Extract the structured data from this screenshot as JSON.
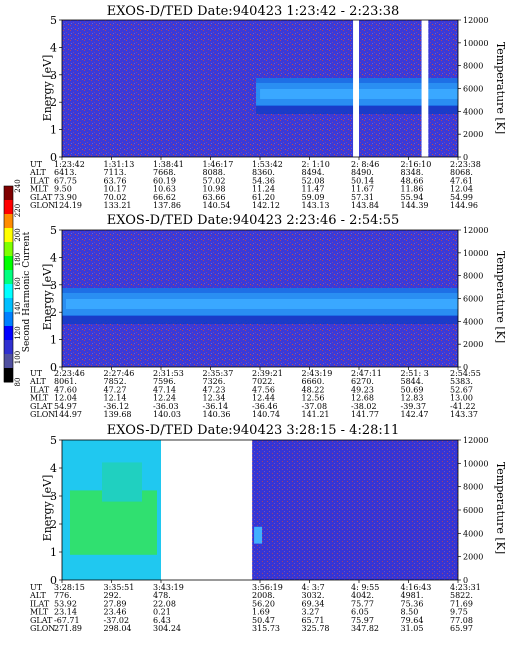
{
  "colorbar": {
    "label": "Second Harmonic Current",
    "ticks": [
      "240",
      "220",
      "200",
      "180",
      "160",
      "140",
      "120",
      "100",
      "80"
    ],
    "colors": [
      "#7f0000",
      "#ff0000",
      "#ff8c00",
      "#ffff00",
      "#7fff00",
      "#00ff00",
      "#00ff7f",
      "#00ffff",
      "#00bfff",
      "#0080ff",
      "#0000ff",
      "#3030d0",
      "#5050a0",
      "#000000"
    ]
  },
  "chart_data": [
    {
      "type": "heatmap",
      "title": "EXOS-D/TED    Date:940423    1:23:42 - 2:23:38",
      "ylabel": "Energy [eV]",
      "y2label": "Temperature [K]",
      "ylim": [
        0,
        5
      ],
      "y2lim": [
        0,
        12000
      ],
      "yticks": [
        "0",
        "1",
        "2",
        "3",
        "4",
        "5"
      ],
      "y2ticks": [
        "0",
        "2000",
        "4000",
        "6000",
        "8000",
        "10000",
        "12000"
      ],
      "grid": false,
      "data_gaps": [
        [
          0.735,
          0.75
        ],
        [
          0.908,
          0.925
        ]
      ],
      "band": {
        "start": 0.49,
        "center_y": 2.3
      },
      "axis_rows": [
        {
          "name": "UT",
          "values": [
            "1:23:42",
            "1:31:13",
            "1:38:41",
            "1:46:17",
            "1:53:42",
            "2: 1:10",
            "2: 8:46",
            "2:16:10",
            "2:23:38"
          ]
        },
        {
          "name": "ALT",
          "values": [
            "6413.",
            "7113.",
            "7668.",
            "8088.",
            "8360.",
            "8494.",
            "8490.",
            "8348.",
            "8068."
          ]
        },
        {
          "name": "ILAT",
          "values": [
            "67.75",
            "63.76",
            "60.19",
            "57.02",
            "54.36",
            "52.08",
            "50.14",
            "48.66",
            "47.61"
          ]
        },
        {
          "name": "MLT",
          "values": [
            "9.50",
            "10.17",
            "10.63",
            "10.98",
            "11.24",
            "11.47",
            "11.67",
            "11.86",
            "12.04"
          ]
        },
        {
          "name": "GLAT",
          "values": [
            "73.90",
            "70.02",
            "66.62",
            "63.66",
            "61.20",
            "59.09",
            "57.31",
            "55.94",
            "54.99"
          ]
        },
        {
          "name": "GLON",
          "values": [
            "124.19",
            "133.21",
            "137.86",
            "140.54",
            "142.12",
            "143.13",
            "143.84",
            "144.39",
            "144.96"
          ]
        }
      ]
    },
    {
      "type": "heatmap",
      "title": "EXOS-D/TED    Date:940423    2:23:46 - 2:54:55",
      "ylabel": "Energy [eV]",
      "y2label": "Temperature [K]",
      "ylim": [
        0,
        5
      ],
      "y2lim": [
        0,
        12000
      ],
      "yticks": [
        "0",
        "1",
        "2",
        "3",
        "4",
        "5"
      ],
      "y2ticks": [
        "0",
        "2000",
        "4000",
        "6000",
        "8000",
        "10000",
        "12000"
      ],
      "grid": false,
      "data_gaps": [],
      "band": {
        "start": 0.0,
        "center_y": 2.3
      },
      "axis_rows": [
        {
          "name": "UT",
          "values": [
            "2:23:46",
            "2:27:46",
            "2:31:53",
            "2:35:37",
            "2:39:21",
            "2:43:19",
            "2:47:11",
            "2:51: 3",
            "2:54:55"
          ]
        },
        {
          "name": "ALT",
          "values": [
            "8061.",
            "7852.",
            "7596.",
            "7326.",
            "7022.",
            "6660.",
            "6270.",
            "5844.",
            "5383."
          ]
        },
        {
          "name": "ILAT",
          "values": [
            "47.60",
            "47.27",
            "47.14",
            "47.23",
            "47.56",
            "48.22",
            "49.23",
            "50.69",
            "52.67"
          ]
        },
        {
          "name": "MLT",
          "values": [
            "12.04",
            "12.14",
            "12.24",
            "12.34",
            "12.44",
            "12.56",
            "12.68",
            "12.83",
            "13.00"
          ]
        },
        {
          "name": "GLAT",
          "values": [
            "54.97",
            "-36.12",
            "-36.03",
            "-36.14",
            "-36.46",
            "-37.08",
            "-38.02",
            "-39.37",
            "-41.22"
          ]
        },
        {
          "name": "GLON",
          "values": [
            "144.97",
            "139.68",
            "140.03",
            "140.36",
            "140.74",
            "141.21",
            "141.77",
            "142.47",
            "143.37"
          ]
        }
      ]
    },
    {
      "type": "heatmap",
      "title": "EXOS-D/TED    Date:940423    3:28:15 - 4:28:11",
      "ylabel": "Energy [eV]",
      "y2label": "Temperature [K]",
      "ylim": [
        0,
        5
      ],
      "y2lim": [
        0,
        12000
      ],
      "yticks": [
        "0",
        "1",
        "2",
        "3",
        "4",
        "5"
      ],
      "y2ticks": [
        "0",
        "2000",
        "4000",
        "6000",
        "8000",
        "10000",
        "12000"
      ],
      "grid": false,
      "data_gaps": [
        [
          0.25,
          0.48
        ]
      ],
      "band": null,
      "axis_rows": [
        {
          "name": "UT",
          "values": [
            "3:28:15",
            "3:35:51",
            "3:43:19",
            "",
            "3:56:19",
            "4: 3:7",
            "4: 9:55",
            "4:16:43",
            "4:23:31"
          ]
        },
        {
          "name": "ALT",
          "values": [
            "776.",
            "292.",
            "478.",
            "",
            "2008.",
            "3032.",
            "4042.",
            "4981.",
            "5822."
          ]
        },
        {
          "name": "ILAT",
          "values": [
            "53.92",
            "27.89",
            "22.08",
            "",
            "56.20",
            "69.34",
            "75.77",
            "75.36",
            "71.69"
          ]
        },
        {
          "name": "MLT",
          "values": [
            "23.14",
            "23.46",
            "0.21",
            "",
            "1.69",
            "3.27",
            "6.05",
            "8.50",
            "9.75"
          ]
        },
        {
          "name": "GLAT",
          "values": [
            "-67.71",
            "-37.02",
            "6.43",
            "",
            "50.47",
            "65.71",
            "75.97",
            "79.64",
            "77.08"
          ]
        },
        {
          "name": "GLON",
          "values": [
            "271.89",
            "298.04",
            "304.24",
            "",
            "315.73",
            "325.78",
            "347.82",
            "31.05",
            "65.97"
          ]
        }
      ]
    }
  ]
}
